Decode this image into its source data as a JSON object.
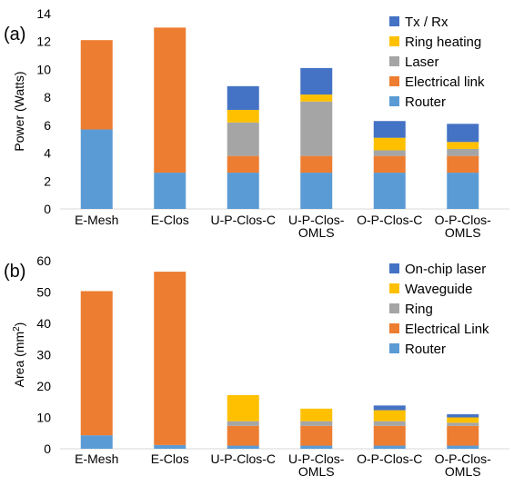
{
  "chart_data": [
    {
      "panel": "(a)",
      "type": "bar",
      "stacked": true,
      "ylabel": "Power (Watts)",
      "ylim": [
        0,
        14
      ],
      "yticks": [
        0,
        2,
        4,
        6,
        8,
        10,
        12,
        14
      ],
      "grid": false,
      "legend": "top-right",
      "categories": [
        [
          "E-Mesh"
        ],
        [
          "E-Clos"
        ],
        [
          "U-P-Clos-C"
        ],
        [
          "U-P-Clos-",
          "OMLS"
        ],
        [
          "O-P-Clos-C"
        ],
        [
          "O-P-Clos-",
          "OMLS"
        ]
      ],
      "series": [
        {
          "name": "Router",
          "color": "#5b9bd5",
          "values": [
            5.7,
            2.6,
            2.6,
            2.6,
            2.6,
            2.6
          ]
        },
        {
          "name": "Electrical link",
          "color": "#ed7d31",
          "values": [
            6.4,
            10.4,
            1.2,
            1.2,
            1.2,
            1.2
          ]
        },
        {
          "name": "Laser",
          "color": "#a5a5a5",
          "values": [
            0,
            0,
            2.4,
            3.9,
            0.4,
            0.5
          ]
        },
        {
          "name": "Ring heating",
          "color": "#ffc000",
          "values": [
            0,
            0,
            0.9,
            0.5,
            0.9,
            0.5
          ]
        },
        {
          "name": "Tx / Rx",
          "color": "#4472c4",
          "values": [
            0,
            0,
            1.7,
            1.9,
            1.2,
            1.3
          ]
        }
      ]
    },
    {
      "panel": "(b)",
      "type": "bar",
      "stacked": true,
      "ylabel_main": "Area (mm",
      "ylabel_sup": "2",
      "ylabel_end": ")",
      "ylim": [
        0,
        60
      ],
      "yticks": [
        0,
        10,
        20,
        30,
        40,
        50,
        60
      ],
      "grid": false,
      "legend": "top-right",
      "categories": [
        [
          "E-Mesh"
        ],
        [
          "E-Clos"
        ],
        [
          "U-P-Clos-C"
        ],
        [
          "U-P-Clos-",
          "OMLS"
        ],
        [
          "O-P-Clos-C"
        ],
        [
          "O-P-Clos-",
          "OMLS"
        ]
      ],
      "series": [
        {
          "name": "Router",
          "color": "#5b9bd5",
          "values": [
            4.3,
            1.2,
            1.0,
            1.0,
            1.0,
            1.0
          ]
        },
        {
          "name": "Electrical Link",
          "color": "#ed7d31",
          "values": [
            46.0,
            55.3,
            6.3,
            6.3,
            6.3,
            6.3
          ]
        },
        {
          "name": "Ring",
          "color": "#a5a5a5",
          "values": [
            0,
            0,
            1.5,
            1.5,
            1.5,
            1.0
          ]
        },
        {
          "name": "Waveguide",
          "color": "#ffc000",
          "values": [
            0,
            0,
            8.3,
            4.0,
            3.5,
            1.7
          ]
        },
        {
          "name": "On-chip laser",
          "color": "#4472c4",
          "values": [
            0,
            0,
            0,
            0,
            1.5,
            1.0
          ]
        }
      ]
    }
  ]
}
